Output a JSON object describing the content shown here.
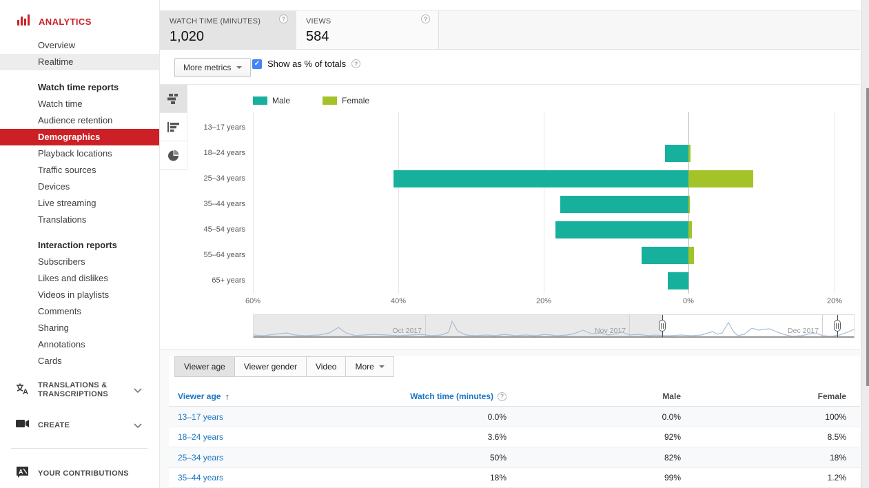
{
  "sidebar": {
    "title": "ANALYTICS",
    "items_top": [
      "Overview",
      "Realtime"
    ],
    "groups": [
      {
        "header": "Watch time reports",
        "items": [
          "Watch time",
          "Audience retention",
          "Demographics",
          "Playback locations",
          "Traffic sources",
          "Devices",
          "Live streaming",
          "Translations"
        ]
      },
      {
        "header": "Interaction reports",
        "items": [
          "Subscribers",
          "Likes and dislikes",
          "Videos in playlists",
          "Comments",
          "Sharing",
          "Annotations",
          "Cards"
        ]
      }
    ],
    "active_item": "Demographics",
    "highlighted_item": "Realtime",
    "bottom_items": [
      {
        "label": "TRANSLATIONS & TRANSCRIPTIONS",
        "collapsible": true
      },
      {
        "label": "CREATE",
        "collapsible": true
      },
      {
        "label": "YOUR CONTRIBUTIONS",
        "collapsible": false
      }
    ]
  },
  "metrics": {
    "cards": [
      {
        "label": "WATCH TIME (MINUTES)",
        "value": "1,020",
        "selected": true
      },
      {
        "label": "VIEWS",
        "value": "584",
        "selected": false
      }
    ],
    "more_metrics_label": "More metrics",
    "show_totals_label": "Show as % of totals",
    "show_totals_checked": true
  },
  "chart_data": {
    "type": "bar",
    "orientation": "horizontal-diverging",
    "title": "Watch time share by viewer age and gender (% of totals)",
    "categories": [
      "13–17 years",
      "18–24 years",
      "25–34 years",
      "35–44 years",
      "45–54 years",
      "55–64 years",
      "65+ years"
    ],
    "series": [
      {
        "name": "Male",
        "values": [
          0,
          3.3,
          41,
          17.8,
          18.5,
          6.5,
          2.9
        ]
      },
      {
        "name": "Female",
        "values": [
          0,
          0.3,
          9,
          0.2,
          0.5,
          0.8,
          0
        ]
      }
    ],
    "x_ticks": [
      "60%",
      "40%",
      "20%",
      "0%",
      "20%"
    ],
    "x_axis_note": "Male extends left of 0%, Female extends right of 0%",
    "legend_position": "top",
    "grid": true,
    "timeline": {
      "months": [
        "Oct 2017",
        "Nov 2017",
        "Dec 2017"
      ],
      "selection_note": "range selected between two handles from early Nov 2017 to early Dec 2017"
    }
  },
  "tabs": [
    {
      "label": "Viewer age",
      "selected": true
    },
    {
      "label": "Viewer gender",
      "selected": false
    },
    {
      "label": "Video",
      "selected": false
    },
    {
      "label": "More",
      "selected": false,
      "has_dropdown": true
    }
  ],
  "table": {
    "columns": [
      {
        "label": "Viewer age",
        "sorted": "ascending"
      },
      {
        "label": "Watch time (minutes)",
        "has_help": true
      },
      {
        "label": "Male"
      },
      {
        "label": "Female"
      }
    ],
    "rows": [
      {
        "age": "13–17 years",
        "watch_time": "0.0%",
        "male": "0.0%",
        "female": "100%"
      },
      {
        "age": "18–24 years",
        "watch_time": "3.6%",
        "male": "92%",
        "female": "8.5%"
      },
      {
        "age": "25–34 years",
        "watch_time": "50%",
        "male": "82%",
        "female": "18%"
      },
      {
        "age": "35–44 years",
        "watch_time": "18%",
        "male": "99%",
        "female": "1.2%"
      }
    ]
  },
  "colors": {
    "male": "#17b09c",
    "female": "#a3c329",
    "accent_red": "#cc2026",
    "link_blue": "#1c77c3",
    "checkbox_blue": "#4285f4",
    "sparkline": "#a9bdd3"
  }
}
